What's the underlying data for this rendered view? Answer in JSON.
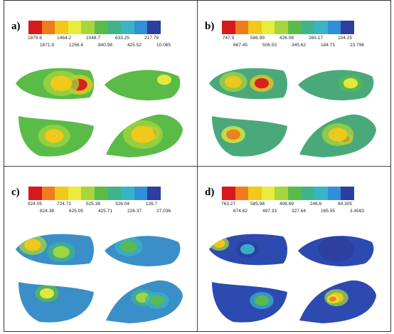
{
  "panels": [
    {
      "label": "a)",
      "ticks_top": [
        "1879.6",
        "1464.2",
        "1048.7",
        "633.25",
        "217.79"
      ],
      "ticks_bottom": [
        "1671.9",
        "1256.4",
        "840.98",
        "425.52",
        "10.065"
      ]
    },
    {
      "label": "b)",
      "ticks_top": [
        "747.9",
        "586.99",
        "426.08",
        "265.17",
        "104.25"
      ],
      "ticks_bottom": [
        "667.45",
        "506.53",
        "345.62",
        "184.71",
        "23.796"
      ]
    },
    {
      "label": "c)",
      "ticks_top": [
        "924.05",
        "724.71",
        "525.38",
        "326.04",
        "126.7"
      ],
      "ticks_bottom": [
        "824.38",
        "625.05",
        "425.71",
        "226.37",
        "27.036"
      ]
    },
    {
      "label": "d)",
      "ticks_top": [
        "763.27",
        "585.98",
        "408.69",
        "246.6",
        "84.305"
      ],
      "ticks_bottom": [
        "674.62",
        "497.33",
        "327.64",
        "165.55",
        "3.4593"
      ]
    }
  ],
  "colormap": [
    "#d7191c",
    "#f07c1e",
    "#f3c81a",
    "#e9ec3a",
    "#a6d63c",
    "#5bbb49",
    "#3fb48b",
    "#3ab3c6",
    "#2f8fd8",
    "#2c3e9e"
  ]
}
